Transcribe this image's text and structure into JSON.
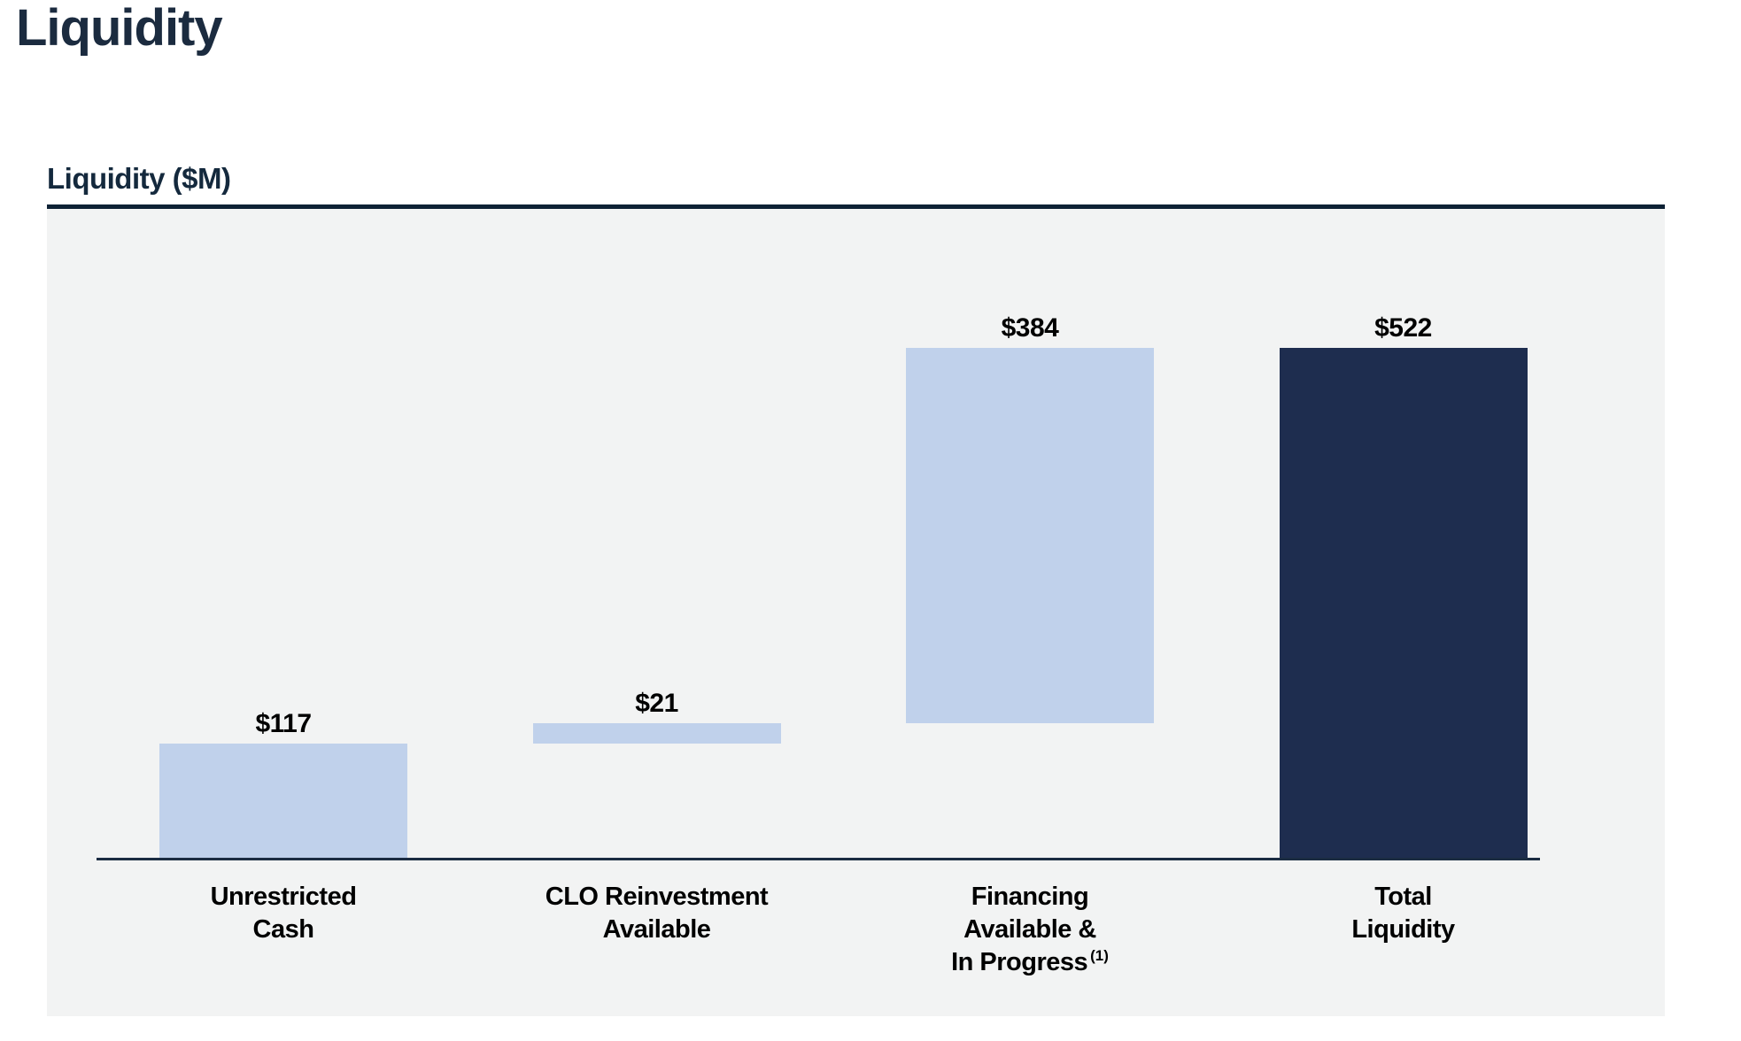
{
  "page": {
    "title": "Liquidity"
  },
  "chart": {
    "heading": "Liquidity ($M)"
  },
  "colors": {
    "light_blue": "#c0d1eb",
    "dark_navy": "#1e2d4f",
    "heading_navy": "#14293d",
    "rule_navy": "#0e2235",
    "plot_background": "#f2f3f3",
    "axis_line": "#1b2c42",
    "label_text": "#000000"
  },
  "chart_data": {
    "type": "bar",
    "subtype": "waterfall",
    "title": "Liquidity ($M)",
    "unit": "$M",
    "xlabel": "",
    "ylabel": "",
    "ylim": [
      0,
      560
    ],
    "grid": false,
    "legend": false,
    "categories": [
      "Unrestricted Cash",
      "CLO Reinvestment Available",
      "Financing Available & In Progress (1)",
      "Total Liquidity"
    ],
    "values": [
      117,
      21,
      384,
      522
    ],
    "bars": [
      {
        "name": "unrestricted-cash",
        "label_lines": [
          "Unrestricted",
          "Cash"
        ],
        "footnote": "",
        "display_value": "$117",
        "value": 117,
        "start": 0,
        "end": 117,
        "color_key": "light_blue"
      },
      {
        "name": "clo-reinvestment-available",
        "label_lines": [
          "CLO Reinvestment",
          "Available"
        ],
        "footnote": "",
        "display_value": "$21",
        "value": 21,
        "start": 117,
        "end": 138,
        "color_key": "light_blue"
      },
      {
        "name": "financing-available-in-progress",
        "label_lines": [
          "Financing",
          "Available &",
          "In Progress"
        ],
        "footnote": "(1)",
        "display_value": "$384",
        "value": 384,
        "start": 138,
        "end": 522,
        "color_key": "light_blue"
      },
      {
        "name": "total-liquidity",
        "label_lines": [
          "Total",
          "Liquidity"
        ],
        "footnote": "",
        "display_value": "$522",
        "value": 522,
        "start": 0,
        "end": 522,
        "color_key": "dark_navy"
      }
    ]
  }
}
